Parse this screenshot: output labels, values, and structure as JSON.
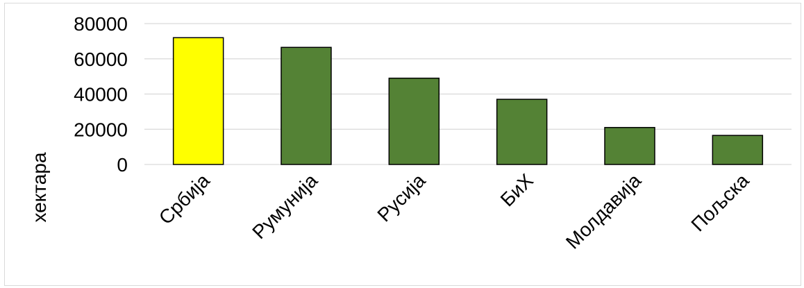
{
  "chart_data": {
    "type": "bar",
    "title": "",
    "xlabel": "",
    "ylabel": "хектара",
    "ylim": [
      0,
      80000
    ],
    "yticks": [
      0,
      20000,
      40000,
      60000,
      80000
    ],
    "grid": true,
    "categories": [
      "Србија",
      "Румунија",
      "Русија",
      "БиХ",
      "Молдавија",
      "Пољска"
    ],
    "values": [
      72000,
      66500,
      49000,
      37000,
      21000,
      16500
    ],
    "colors": [
      "#FFFF00",
      "#548235",
      "#548235",
      "#548235",
      "#548235",
      "#548235"
    ],
    "legend": "none"
  }
}
